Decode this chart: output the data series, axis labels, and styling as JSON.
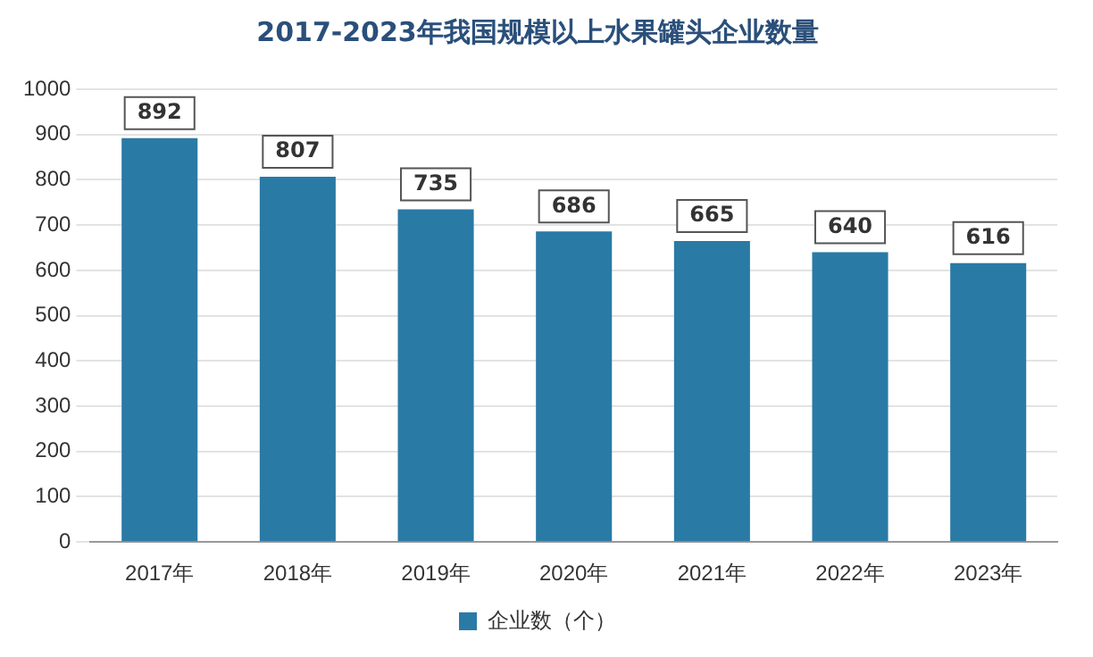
{
  "chart_data": {
    "type": "bar",
    "title": "2017-2023年我国规模以上水果罐头企业数量",
    "categories": [
      "2017年",
      "2018年",
      "2019年",
      "2020年",
      "2021年",
      "2022年",
      "2023年"
    ],
    "series": [
      {
        "name": "企业数（个）",
        "color": "#2a7aa6",
        "values": [
          892,
          807,
          735,
          686,
          665,
          640,
          616
        ]
      }
    ],
    "ylim": [
      0,
      1000
    ],
    "yticks": [
      0,
      100,
      200,
      300,
      400,
      500,
      600,
      700,
      800,
      900,
      1000
    ],
    "grid": "y",
    "legend": "bottom",
    "data_labels": true
  }
}
